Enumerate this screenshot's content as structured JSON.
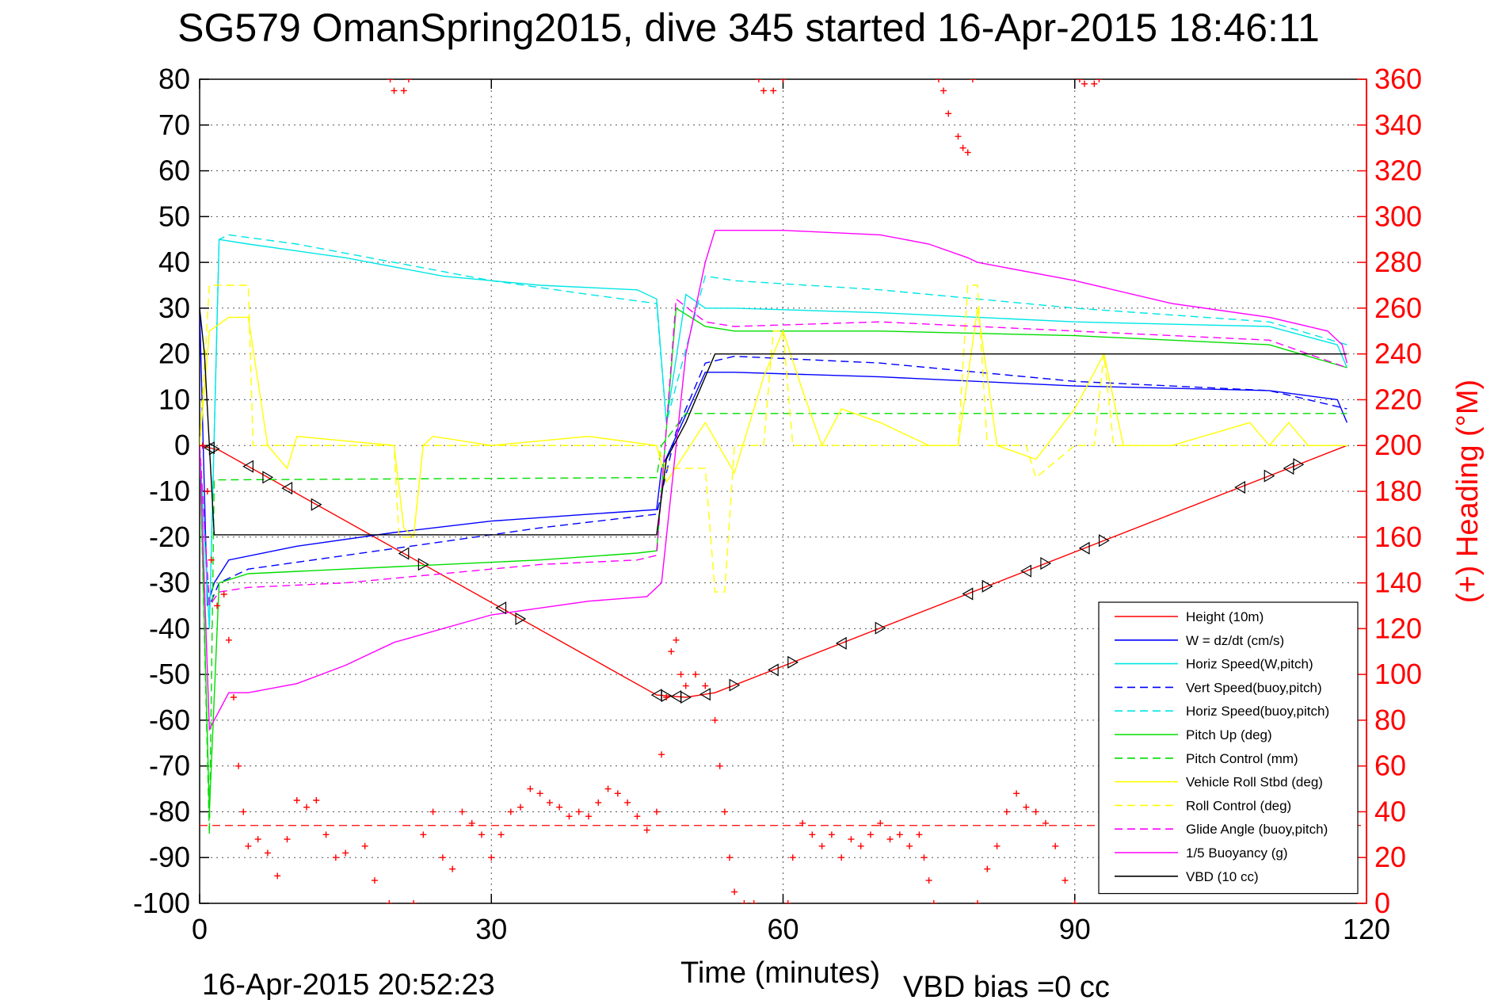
{
  "chart_data": {
    "type": "line",
    "title": "SG579 OmanSpring2015, dive 345 started 16-Apr-2015 18:46:11",
    "xlabel": "Time (minutes)",
    "ylabel_right": "(+) Heading (°M)",
    "footer_left": "16-Apr-2015 20:52:23",
    "footer_right": "VBD bias =0 cc",
    "xlim": [
      0,
      120
    ],
    "ylim": [
      -100,
      80
    ],
    "ylim_right": [
      0,
      360
    ],
    "xticks": [
      0,
      30,
      60,
      90,
      120
    ],
    "yticks": [
      80,
      70,
      60,
      50,
      40,
      30,
      20,
      10,
      0,
      -10,
      -20,
      -30,
      -40,
      -50,
      -60,
      -70,
      -80,
      -90,
      -100
    ],
    "yticks_right": [
      360,
      340,
      320,
      300,
      280,
      260,
      240,
      220,
      200,
      180,
      160,
      140,
      120,
      100,
      80,
      60,
      40,
      20,
      0
    ],
    "grid": true,
    "legend_position": "bottom-right",
    "series": [
      {
        "name": "Height (10m)",
        "color": "#ff0000",
        "style": "solid",
        "x": [
          0,
          2,
          47,
          50,
          53,
          118
        ],
        "y": [
          0,
          -1,
          -54.5,
          -55,
          -54,
          0
        ]
      },
      {
        "name": "W = dz/dt (cm/s)",
        "color": "#0000ff",
        "style": "solid",
        "x": [
          0,
          0.8,
          1.5,
          3,
          10,
          20,
          30,
          40,
          47,
          47.5,
          49,
          52,
          55,
          70,
          90,
          110,
          117,
          118
        ],
        "y": [
          30,
          -35,
          -30,
          -25,
          -22,
          -19,
          -16.5,
          -15,
          -14,
          -5,
          2,
          16,
          16,
          15,
          13,
          12,
          10,
          5
        ]
      },
      {
        "name": "Horiz Speed(W,pitch)",
        "color": "#00e5e5",
        "style": "solid",
        "x": [
          0,
          1,
          2,
          5,
          15,
          25,
          35,
          45,
          47,
          48,
          50,
          52,
          55,
          70,
          90,
          110,
          117,
          118
        ],
        "y": [
          0,
          -40,
          45,
          44,
          41,
          37,
          35,
          34,
          32,
          5,
          33,
          30,
          30,
          29,
          27,
          26,
          22,
          17
        ]
      },
      {
        "name": "Vert Speed(buoy,pitch)",
        "color": "#0000ff",
        "style": "dashed",
        "x": [
          0,
          1,
          2,
          5,
          15,
          25,
          35,
          45,
          47,
          49,
          52,
          55,
          70,
          90,
          110,
          118
        ],
        "y": [
          0,
          -35,
          -30,
          -27,
          -24,
          -21,
          -18,
          -15.5,
          -15,
          3,
          18,
          19.5,
          18,
          14,
          12,
          8
        ]
      },
      {
        "name": "Horiz Speed(buoy,pitch)",
        "color": "#00e5e5",
        "style": "dashed",
        "x": [
          0,
          1,
          2,
          3,
          10,
          20,
          30,
          40,
          47,
          48,
          52,
          55,
          70,
          90,
          110,
          118
        ],
        "y": [
          0,
          -40,
          45,
          46,
          44,
          40,
          36,
          33,
          31,
          5,
          37,
          36,
          34,
          30,
          27,
          22
        ]
      },
      {
        "name": "Pitch Up (deg)",
        "color": "#00dd00",
        "style": "solid",
        "x": [
          0,
          1,
          2,
          5,
          15,
          25,
          35,
          45,
          47,
          49,
          52,
          55,
          70,
          90,
          110,
          118
        ],
        "y": [
          0,
          -80,
          -30,
          -28,
          -27,
          -26,
          -25,
          -23.5,
          -23,
          30,
          26,
          25,
          25,
          24,
          22,
          17
        ]
      },
      {
        "name": "Pitch Control (mm)",
        "color": "#00dd00",
        "style": "dashed",
        "x": [
          0,
          1,
          1.5,
          47,
          47.5,
          50,
          118
        ],
        "y": [
          0,
          -85,
          -7.5,
          -7,
          0,
          7,
          7
        ]
      },
      {
        "name": "Vehicle Roll Stbd (deg)",
        "color": "#ffff00",
        "style": "solid",
        "x": [
          0,
          1,
          3,
          5,
          7,
          9,
          10,
          20,
          21,
          22,
          23,
          24,
          30,
          40,
          47,
          48,
          52,
          55,
          58,
          60,
          62,
          64,
          66,
          70,
          75,
          78,
          80,
          82,
          86,
          90,
          93,
          95,
          100,
          108,
          110,
          112,
          114,
          116,
          118
        ],
        "y": [
          0,
          25,
          28,
          28,
          0,
          -5,
          2,
          0,
          -18,
          -20,
          0,
          2,
          0,
          2,
          0,
          -8,
          5,
          -6,
          15,
          25,
          12,
          0,
          8,
          5,
          0,
          0,
          30,
          0,
          -3,
          8,
          20,
          0,
          0,
          5,
          0,
          5,
          0,
          0,
          0
        ]
      },
      {
        "name": "Roll Control (deg)",
        "color": "#ffff00",
        "style": "dashed",
        "x": [
          0,
          1,
          2,
          5,
          5.5,
          9,
          10,
          20,
          20.5,
          22,
          23,
          47,
          48,
          52,
          53,
          54,
          55,
          58,
          59,
          60,
          61,
          62,
          70,
          78,
          79,
          80,
          81,
          85,
          86,
          90,
          92,
          93,
          94,
          118
        ],
        "y": [
          0,
          35,
          35,
          35,
          0,
          0,
          0,
          0,
          -20,
          -20,
          0,
          0,
          -5,
          -5,
          -32,
          -32,
          0,
          0,
          25,
          25,
          0,
          0,
          0,
          0,
          35,
          35,
          0,
          0,
          -7,
          0,
          0,
          20,
          0,
          0
        ]
      },
      {
        "name": "Glide Angle (buoy,pitch)",
        "color": "#ff00ff",
        "style": "dashed",
        "x": [
          0,
          1,
          2,
          5,
          15,
          25,
          35,
          45,
          47,
          49,
          52,
          55,
          70,
          90,
          110,
          118
        ],
        "y": [
          0,
          -35,
          -32,
          -31,
          -30,
          -28,
          -26,
          -25,
          -24,
          32,
          27,
          26,
          27,
          25,
          23,
          17
        ]
      },
      {
        "name": "1/5 Buoyancy (g)",
        "color": "#ff00ff",
        "style": "solid",
        "x": [
          0,
          1,
          3,
          5,
          10,
          15,
          20,
          30,
          40,
          46,
          47.5,
          50,
          52,
          53,
          60,
          70,
          75,
          79,
          80,
          90,
          100,
          110,
          116,
          117.5,
          118
        ],
        "y": [
          0,
          -62,
          -54,
          -54,
          -52,
          -48,
          -43,
          -37,
          -34,
          -33,
          -30,
          20,
          40,
          47,
          47,
          46,
          44,
          41,
          40,
          36,
          31,
          28,
          25,
          22,
          18
        ]
      },
      {
        "name": "VBD (10 cc)",
        "color": "#000000",
        "style": "solid",
        "x": [
          0,
          0.5,
          1,
          1.5,
          2,
          47,
          48,
          50,
          53,
          118
        ],
        "y": [
          30,
          20,
          0,
          -19.5,
          -19.5,
          -19.5,
          -3,
          5,
          20,
          20
        ]
      }
    ],
    "heading_series": {
      "name": "(+) Heading",
      "color": "#ff0000",
      "marker": "+",
      "points": [
        [
          0.3,
          200
        ],
        [
          0.8,
          180
        ],
        [
          1.2,
          150
        ],
        [
          1.8,
          130
        ],
        [
          2.5,
          135
        ],
        [
          3,
          115
        ],
        [
          3.5,
          90
        ],
        [
          4,
          60
        ],
        [
          4.5,
          40
        ],
        [
          5,
          25
        ],
        [
          6,
          28
        ],
        [
          7,
          22
        ],
        [
          8,
          12
        ],
        [
          9,
          28
        ],
        [
          10,
          45
        ],
        [
          11,
          42
        ],
        [
          12,
          45
        ],
        [
          13,
          30
        ],
        [
          14,
          20
        ],
        [
          15,
          22
        ],
        [
          17,
          25
        ],
        [
          18,
          10
        ],
        [
          19.5,
          0
        ],
        [
          19.6,
          360
        ],
        [
          20,
          355
        ],
        [
          21,
          355
        ],
        [
          21.5,
          360
        ],
        [
          22,
          0
        ],
        [
          23,
          30
        ],
        [
          24,
          40
        ],
        [
          25,
          20
        ],
        [
          26,
          15
        ],
        [
          27,
          40
        ],
        [
          28,
          35
        ],
        [
          29,
          30
        ],
        [
          30,
          20
        ],
        [
          31,
          30
        ],
        [
          32,
          40
        ],
        [
          33,
          42
        ],
        [
          34,
          50
        ],
        [
          35,
          48
        ],
        [
          36,
          44
        ],
        [
          37,
          42
        ],
        [
          38,
          38
        ],
        [
          39,
          40
        ],
        [
          40,
          38
        ],
        [
          41,
          44
        ],
        [
          42,
          50
        ],
        [
          43,
          48
        ],
        [
          44,
          44
        ],
        [
          45,
          38
        ],
        [
          46,
          32
        ],
        [
          47,
          40
        ],
        [
          47.5,
          65
        ],
        [
          48,
          90
        ],
        [
          48.5,
          110
        ],
        [
          49,
          115
        ],
        [
          49.5,
          100
        ],
        [
          50,
          95
        ],
        [
          51,
          100
        ],
        [
          52,
          95
        ],
        [
          53,
          80
        ],
        [
          53.5,
          60
        ],
        [
          54,
          40
        ],
        [
          54.5,
          20
        ],
        [
          55,
          5
        ],
        [
          56,
          0
        ],
        [
          57,
          0
        ],
        [
          57.5,
          360
        ],
        [
          58,
          355
        ],
        [
          59,
          355
        ],
        [
          60,
          360
        ],
        [
          60.5,
          0
        ],
        [
          61,
          20
        ],
        [
          62,
          35
        ],
        [
          63,
          30
        ],
        [
          64,
          25
        ],
        [
          65,
          30
        ],
        [
          66,
          20
        ],
        [
          67,
          28
        ],
        [
          68,
          25
        ],
        [
          69,
          30
        ],
        [
          70,
          35
        ],
        [
          71,
          28
        ],
        [
          72,
          30
        ],
        [
          73,
          25
        ],
        [
          74,
          30
        ],
        [
          74.5,
          20
        ],
        [
          75,
          10
        ],
        [
          75.5,
          0
        ],
        [
          76,
          360
        ],
        [
          76.5,
          355
        ],
        [
          77,
          345
        ],
        [
          78,
          335
        ],
        [
          78.5,
          330
        ],
        [
          79,
          328
        ],
        [
          79.5,
          360
        ],
        [
          80,
          0
        ],
        [
          81,
          15
        ],
        [
          82,
          25
        ],
        [
          83,
          40
        ],
        [
          84,
          48
        ],
        [
          85,
          42
        ],
        [
          86,
          40
        ],
        [
          87,
          35
        ],
        [
          88,
          25
        ],
        [
          89,
          10
        ],
        [
          90,
          0
        ],
        [
          90.5,
          360
        ],
        [
          91,
          358
        ],
        [
          92,
          358
        ],
        [
          92.5,
          360
        ]
      ]
    },
    "vbd_target": {
      "color": "#ff0000",
      "style": "dashed",
      "y": -83
    }
  }
}
